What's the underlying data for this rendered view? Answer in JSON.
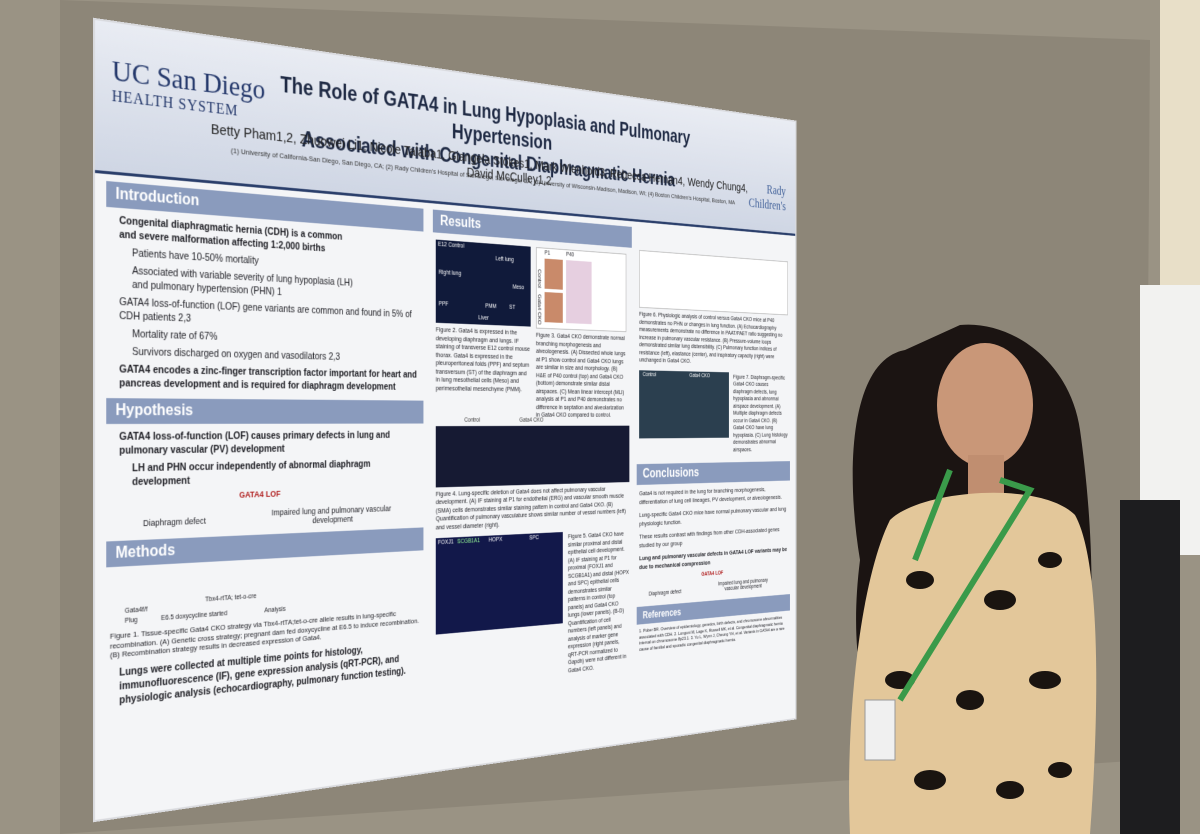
{
  "header": {
    "logo_left": [
      "UC San Diego",
      "HEALTH SYSTEM"
    ],
    "title": [
      "The Role of GATA4 in Lung Hypoplasia and Pulmonary Hypertension",
      "Associated with Congenital Diaphragmatic Hernia"
    ],
    "authors": "Betty Pham1,2, Zhuowei Li1, Nicole Talaba1, Giangela Stokes1, Mark Wienhold3, Rebecca Hernan4, Wendy Chung4, David McCulley1,2",
    "affiliations": "(1) University of California-San Diego, San Diego, CA; (2) Rady Children's Hospital of San Diego, San Diego, CA; (3) University of Wisconsin-Madison, Madison, WI; (4) Boston Children's Hospital, Boston, MA",
    "logo_right": [
      "Rady",
      "Children's"
    ]
  },
  "introduction": {
    "heading": "Introduction",
    "items": [
      "Congenital diaphragmatic hernia (CDH) is a common and severe malformation affecting 1:2,000 births",
      "Patients have 10-50% mortality",
      "Associated with variable severity of lung hypoplasia (LH) and pulmonary hypertension (PHN) 1",
      "GATA4 loss-of-function (LOF) gene variants are common and found in 5% of CDH patients 2,3",
      "Mortality rate of 67%",
      "Survivors discharged on oxygen and vasodilators 2,3",
      "GATA4 encodes a zinc-finger transcription factor important for heart and pancreas development and is required for diaphragm development"
    ]
  },
  "hypothesis": {
    "heading": "Hypothesis",
    "items": [
      "GATA4 loss-of-function (LOF) causes primary defects in lung and pulmonary vascular (PV) development",
      "LH and PHN occur independently of abnormal diaphragm development"
    ],
    "diagram": {
      "top": "GATA4 LOF",
      "left": "Diaphragm defect",
      "right": "Impaired lung and pulmonary vascular development"
    }
  },
  "methods": {
    "heading": "Methods",
    "labels": [
      "Gata4f/f",
      "Tbx4-rtTA; tet-o-cre",
      "Plug",
      "E6.5 doxycycline started",
      "Analysis"
    ],
    "caption": "Figure 1. Tissue-specific Gata4 CKO strategy via Tbx4-rtTA;tet-o-cre allele results in lung-specific recombination. (A) Genetic cross strategy; pregnant dam fed doxycycline at E6.5 to induce recombination. (B) Recombination strategy results in decreased expression of Gata4.",
    "text": "Lungs were collected at multiple time points for histology, immunofluorescence (IF), gene expression analysis (qRT-PCR), and physiologic analysis (echocardiography, pulmonary function testing)."
  },
  "results": {
    "heading": "Results",
    "fig2": {
      "labels": [
        "E12 Control",
        "Left lung",
        "Right lung",
        "Meso",
        "PPF",
        "PMM",
        "ST",
        "Liver"
      ],
      "caption": "Figure 2. Gata4 is expressed in the developing diaphragm and lungs. IF staining of transverse E12 control mouse thorax. Gata4 is expressed in the pleuroperitoneal folds (PPF) and septum transversum (ST) of the diaphragm and in lung mesothelial cells (Meso) and perimesothelial mesenchyme (PMM)."
    },
    "fig3": {
      "labels": [
        "P1",
        "P40",
        "Control",
        "Gata4 CKO"
      ],
      "caption": "Figure 3. Gata4 CKO demonstrate normal branching morphogenesis and alveologenesis. (A) Dissected whole lungs at P1 show control and Gata4 CKO lungs are similar in size and morphology. (B) H&E of P40 control (top) and Gata4 CKO (bottom) demonstrate similar distal airspaces. (C) Mean linear intercept (MLI) analysis at P1 and P40 demonstrates no difference in septation and alveolarization in Gata4 CKO compared to control."
    },
    "fig4": {
      "labels": [
        "Control",
        "Gata4 CKO"
      ],
      "caption": "Figure 4. Lung-specific deletion of Gata4 does not affect pulmonary vascular development. (A) IF staining at P1 for endothelial (ERG) and vascular smooth muscle (SMA) cells demonstrates similar staining pattern in control and Gata4 CKO. (B) Quantification of pulmonary vasculature shows similar number of vessel numbers (left) and vessel diameter (right)."
    },
    "fig5": {
      "labels": [
        "FOXJ1",
        "SCGB1A1",
        "HOPX",
        "SPC"
      ],
      "caption": "Figure 5. Gata4 CKO have similar proximal and distal epithelial cell development. (A) IF staining at P1 for proximal (FOXJ1 and SCGB1A1) and distal (HOPX and SPC) epithelial cells demonstrates similar patterns in control (top panels) and Gata4 CKO lungs (lower panels). (B-D) Quantification of cell numbers (left panels) and analysis of marker gene expression (right panels, qRT-PCR normalized to Gapdh) were not different in Gata4 CKO."
    },
    "fig6": {
      "caption": "Figure 6. Physiologic analysis of control versus Gata4 CKO mice at P40 demonstrates no PHN or changes in lung function. (A) Echocardiography measurements demonstrate no difference in PAAT/PAET ratio suggesting no increase in pulmonary vascular resistance. (B) Pressure-volume loops demonstrated similar lung distensibility. (C) Pulmonary function indices of resistance (left), elastance (center), and inspiratory capacity (right) were unchanged in Gata4 CKO."
    },
    "fig7": {
      "labels": [
        "Control",
        "Gata4 CKO"
      ],
      "caption": "Figure 7. Diaphragm-specific Gata4 CKO causes diaphragm defects, lung hypoplasia and abnormal airspace development. (A) Multiple diaphragm defects occur in Gata4 CKO. (B) Gata4 CKO have lung hypoplasia. (C) Lung histology demonstrates abnormal airspaces."
    }
  },
  "conclusions": {
    "heading": "Conclusions",
    "items": [
      "Gata4 is not required in the lung for branching morphogenesis, differentiation of lung cell lineages, PV development, or alveologenesis.",
      "Lung-specific Gata4 CKO mice have normal pulmonary vascular and lung physiologic function.",
      "These results contrast with findings from other CDH-associated genes studied by our group",
      "Lung and pulmonary vascular defects in GATA4 LOF variants may be due to mechanical compression"
    ],
    "diagram": {
      "top": "GATA4 LOF",
      "left": "Diaphragm defect",
      "right": "Impaired lung and pulmonary vascular development"
    }
  },
  "references": {
    "heading": "References",
    "text": "1. Pober BR. Overview of epidemiology, genetics, birth defects, and chromosome abnormalities associated with CDH. 2. Longoni M, Lage K, Russell MK, et al. Congenital diaphragmatic hernia interval on chromosome 8p23.1. 3. Yu L, Wynn J, Cheung YH, et al. Variants in GATA4 are a rare cause of familial and sporadic congenital diaphragmatic hernia."
  }
}
